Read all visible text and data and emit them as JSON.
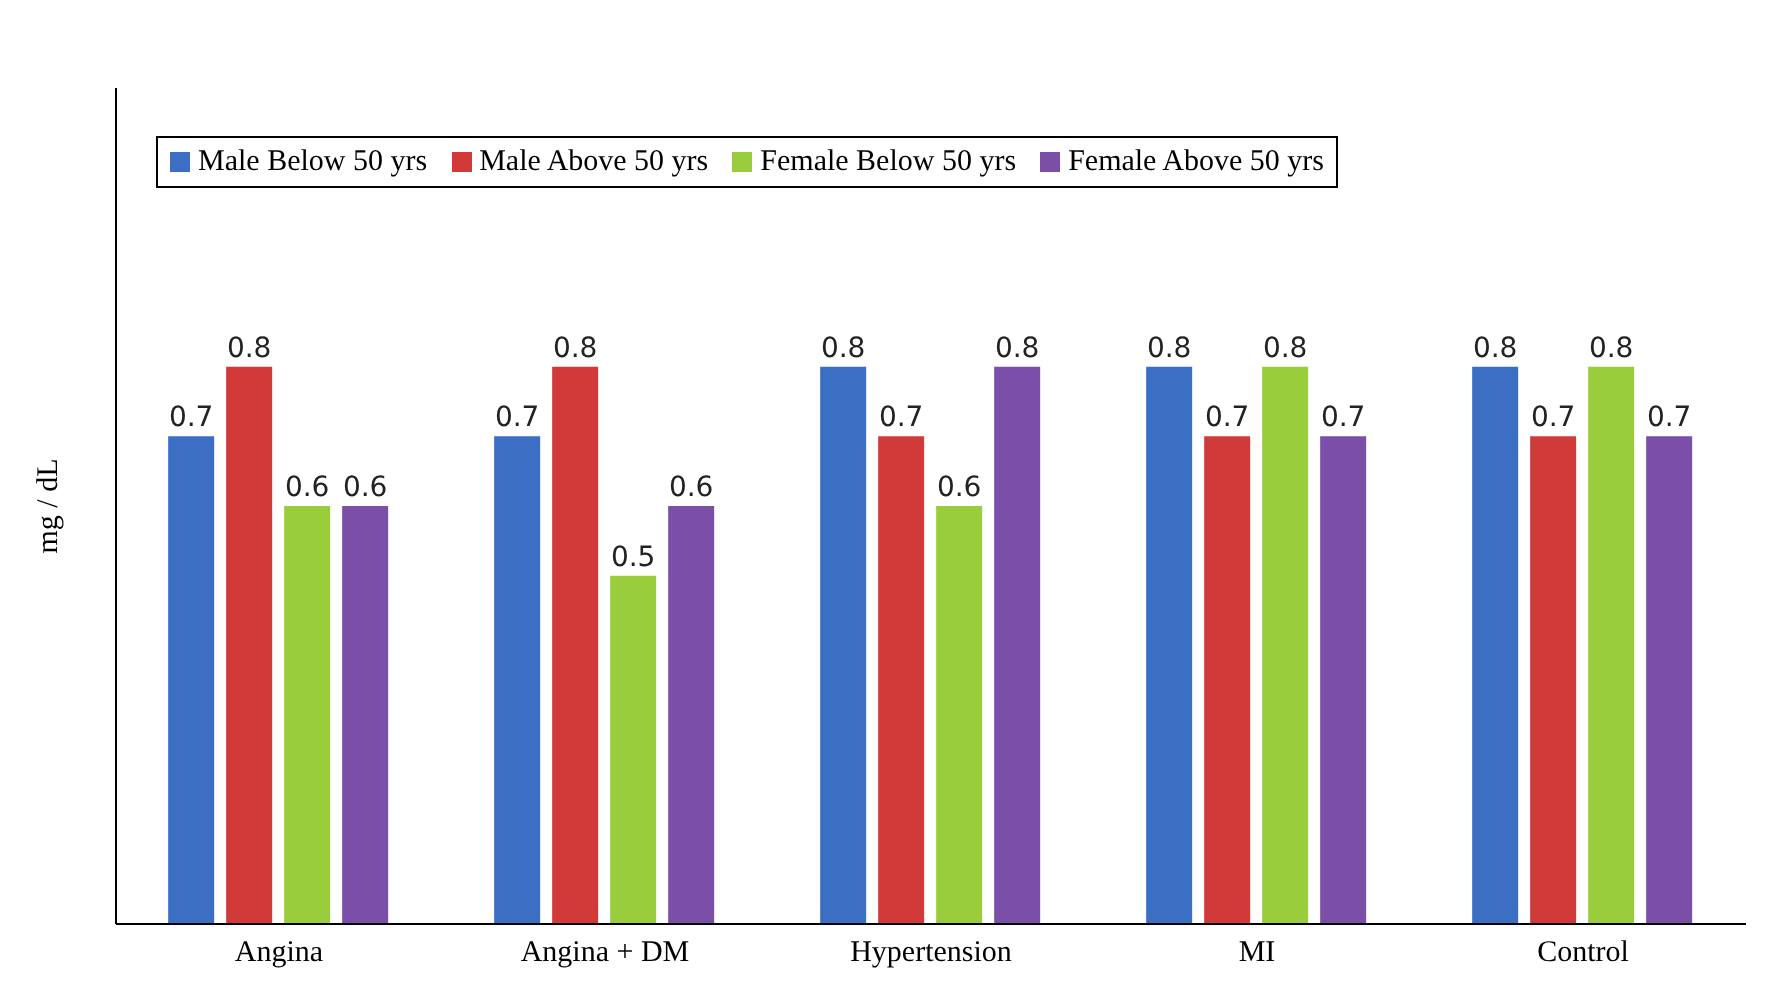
{
  "chart_data": {
    "type": "bar",
    "ylabel": "mg / dL",
    "categories": [
      "Angina",
      "Angina + DM",
      "Hypertension",
      "MI",
      "Control"
    ],
    "series": [
      {
        "name": "Male Below 50 yrs",
        "color": "#3a6fc4",
        "values": [
          0.7,
          0.7,
          0.8,
          0.8,
          0.8
        ]
      },
      {
        "name": "Male Above 50 yrs",
        "color": "#d23a3a",
        "values": [
          0.8,
          0.8,
          0.7,
          0.7,
          0.7
        ]
      },
      {
        "name": "Female Below 50 yrs",
        "color": "#9acd3c",
        "values": [
          0.6,
          0.5,
          0.6,
          0.8,
          0.8
        ]
      },
      {
        "name": "Female Above 50 yrs",
        "color": "#7b4fa8",
        "values": [
          0.6,
          0.6,
          0.8,
          0.7,
          0.7
        ]
      }
    ],
    "ylim": [
      0,
      1.2
    ],
    "tick_labels": "x",
    "data_labels": true,
    "legend": "top",
    "grid": false
  }
}
